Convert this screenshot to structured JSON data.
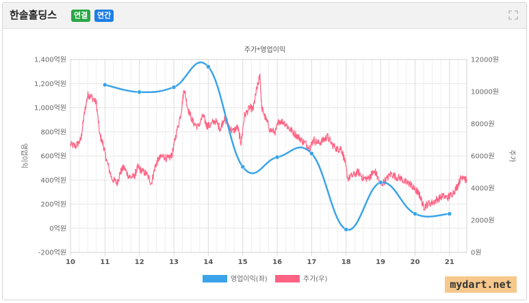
{
  "header": {
    "company": "한솔홀딩스",
    "badges": [
      {
        "label": "연결",
        "color": "#28a745"
      },
      {
        "label": "연간",
        "color": "#1e7ee4"
      }
    ],
    "expand_icon": "expand-icon"
  },
  "watermark": "mydart.net",
  "chart_data": {
    "type": "line",
    "title": "주가*영업이익",
    "x_ticks": [
      "10",
      "11",
      "12",
      "13",
      "14",
      "15",
      "16",
      "17",
      "18",
      "19",
      "20",
      "21"
    ],
    "xlim": [
      10,
      21.5
    ],
    "left_axis": {
      "label": "영업이익",
      "ylim": [
        -200,
        1400
      ],
      "ticks": [
        -200,
        0,
        200,
        400,
        600,
        800,
        1000,
        1200,
        1400
      ],
      "tick_labels": [
        "-200억원",
        "0억원",
        "200억원",
        "400억원",
        "600억원",
        "800억원",
        "1,000억원",
        "1,200억원",
        "1,400억원"
      ]
    },
    "right_axis": {
      "label": "주가",
      "ylim": [
        0,
        12000
      ],
      "ticks": [
        0,
        2000,
        4000,
        6000,
        8000,
        10000,
        12000
      ],
      "tick_labels": [
        "0원",
        "2000원",
        "4000원",
        "6000원",
        "8000원",
        "10000원",
        "12000원"
      ]
    },
    "series": [
      {
        "name": "영업이익(좌)",
        "axis": "left",
        "color": "#3aa3e9",
        "x": [
          11,
          12,
          13,
          14,
          15,
          16,
          17,
          18,
          19,
          20,
          21
        ],
        "values": [
          1190,
          1130,
          1170,
          1340,
          510,
          590,
          620,
          -10,
          380,
          120,
          120
        ]
      },
      {
        "name": "주가(우)",
        "axis": "right",
        "color": "#ff6384",
        "x": [
          10.0,
          10.15,
          10.3,
          10.4,
          10.5,
          10.6,
          10.75,
          10.85,
          10.95,
          11.05,
          11.2,
          11.35,
          11.45,
          11.55,
          11.7,
          11.85,
          11.95,
          12.05,
          12.2,
          12.35,
          12.45,
          12.55,
          12.7,
          12.85,
          12.95,
          13.05,
          13.2,
          13.3,
          13.4,
          13.55,
          13.7,
          13.85,
          13.95,
          14.05,
          14.2,
          14.35,
          14.45,
          14.55,
          14.7,
          14.85,
          14.95,
          15.05,
          15.2,
          15.3,
          15.4,
          15.5,
          15.55,
          15.65,
          15.8,
          15.95,
          16.05,
          16.2,
          16.35,
          16.5,
          16.65,
          16.8,
          16.95,
          17.05,
          17.2,
          17.35,
          17.45,
          17.6,
          17.75,
          17.85,
          17.95,
          18.05,
          18.2,
          18.35,
          18.5,
          18.65,
          18.75,
          18.85,
          19.0,
          19.15,
          19.3,
          19.45,
          19.6,
          19.75,
          19.85,
          19.95,
          20.05,
          20.15,
          20.25,
          20.35,
          20.5,
          20.65,
          20.8,
          20.95,
          21.05,
          21.2,
          21.3,
          21.4,
          21.5
        ],
        "values": [
          6700,
          6600,
          7000,
          8600,
          9800,
          9700,
          9300,
          7300,
          6700,
          5700,
          4600,
          4300,
          5000,
          5300,
          4700,
          4700,
          5300,
          5100,
          4900,
          4300,
          5300,
          5800,
          6000,
          5800,
          6100,
          7200,
          8600,
          10200,
          9000,
          8100,
          7800,
          8500,
          7900,
          7900,
          8200,
          7700,
          8300,
          8100,
          7500,
          7800,
          6800,
          8500,
          9000,
          8900,
          10100,
          11000,
          9000,
          8400,
          7600,
          7500,
          8200,
          8100,
          7700,
          7400,
          7100,
          6800,
          6500,
          7000,
          6800,
          7000,
          7200,
          6700,
          6400,
          6500,
          5800,
          4600,
          4800,
          5000,
          4600,
          4600,
          4900,
          5000,
          4200,
          4500,
          4900,
          4700,
          4600,
          4300,
          4300,
          4000,
          3800,
          3500,
          2800,
          3000,
          3100,
          3300,
          3500,
          3400,
          3600,
          4000,
          4500,
          4800,
          4400
        ]
      }
    ],
    "grid": true,
    "legend_position": "bottom"
  }
}
